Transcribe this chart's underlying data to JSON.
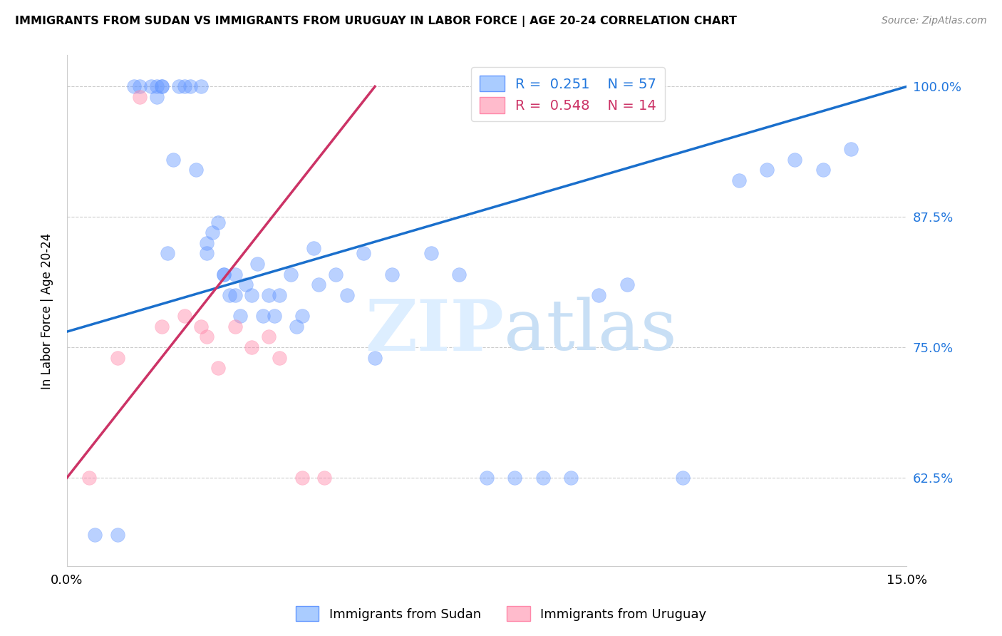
{
  "title": "IMMIGRANTS FROM SUDAN VS IMMIGRANTS FROM URUGUAY IN LABOR FORCE | AGE 20-24 CORRELATION CHART",
  "source": "Source: ZipAtlas.com",
  "ylabel": "In Labor Force | Age 20-24",
  "xlim": [
    0.0,
    0.15
  ],
  "ylim": [
    0.54,
    1.03
  ],
  "yticks": [
    0.625,
    0.75,
    0.875,
    1.0
  ],
  "ytick_labels": [
    "62.5%",
    "75.0%",
    "87.5%",
    "100.0%"
  ],
  "xticks": [
    0.0,
    0.03,
    0.06,
    0.09,
    0.12,
    0.15
  ],
  "xtick_labels": [
    "0.0%",
    "",
    "",
    "",
    "",
    "15.0%"
  ],
  "sudan_color": "#6699ff",
  "uruguay_color": "#ff88aa",
  "sudan_x": [
    0.005,
    0.009,
    0.012,
    0.013,
    0.015,
    0.016,
    0.016,
    0.017,
    0.017,
    0.018,
    0.019,
    0.02,
    0.021,
    0.022,
    0.023,
    0.024,
    0.025,
    0.025,
    0.026,
    0.027,
    0.028,
    0.028,
    0.029,
    0.03,
    0.03,
    0.031,
    0.032,
    0.033,
    0.034,
    0.035,
    0.036,
    0.037,
    0.038,
    0.04,
    0.041,
    0.042,
    0.044,
    0.045,
    0.048,
    0.05,
    0.053,
    0.055,
    0.058,
    0.065,
    0.07,
    0.075,
    0.08,
    0.085,
    0.09,
    0.095,
    0.1,
    0.11,
    0.12,
    0.125,
    0.13,
    0.135,
    0.14
  ],
  "sudan_y": [
    0.57,
    0.57,
    1.0,
    1.0,
    1.0,
    1.0,
    0.99,
    1.0,
    1.0,
    0.84,
    0.93,
    1.0,
    1.0,
    1.0,
    0.92,
    1.0,
    0.84,
    0.85,
    0.86,
    0.87,
    0.82,
    0.82,
    0.8,
    0.82,
    0.8,
    0.78,
    0.81,
    0.8,
    0.83,
    0.78,
    0.8,
    0.78,
    0.8,
    0.82,
    0.77,
    0.78,
    0.845,
    0.81,
    0.82,
    0.8,
    0.84,
    0.74,
    0.82,
    0.84,
    0.82,
    0.625,
    0.625,
    0.625,
    0.625,
    0.8,
    0.81,
    0.625,
    0.91,
    0.92,
    0.93,
    0.92,
    0.94
  ],
  "uruguay_x": [
    0.004,
    0.009,
    0.013,
    0.017,
    0.021,
    0.024,
    0.025,
    0.027,
    0.03,
    0.033,
    0.036,
    0.038,
    0.042,
    0.046
  ],
  "uruguay_y": [
    0.625,
    0.74,
    0.99,
    0.77,
    0.78,
    0.77,
    0.76,
    0.73,
    0.77,
    0.75,
    0.76,
    0.74,
    0.625,
    0.625
  ],
  "blue_line_x": [
    0.0,
    0.15
  ],
  "blue_line_y": [
    0.765,
    1.0
  ],
  "pink_line_x": [
    0.0,
    0.055
  ],
  "pink_line_y": [
    0.625,
    1.0
  ],
  "blue_line_color": "#1a6fcc",
  "pink_line_color": "#cc3366",
  "grid_color": "#cccccc",
  "watermark_zip": "ZIP",
  "watermark_atlas": "atlas",
  "watermark_color": "#ddeeff",
  "legend_sudan_face": "#aaccff",
  "legend_sudan_edge": "#6699ff",
  "legend_uruguay_face": "#ffbbcc",
  "legend_uruguay_edge": "#ff88aa",
  "legend_sudan_r": "R = ",
  "legend_sudan_r_val": "0.251",
  "legend_sudan_n": "N = ",
  "legend_sudan_n_val": "57",
  "legend_uruguay_r_val": "0.548",
  "legend_uruguay_n_val": "14"
}
